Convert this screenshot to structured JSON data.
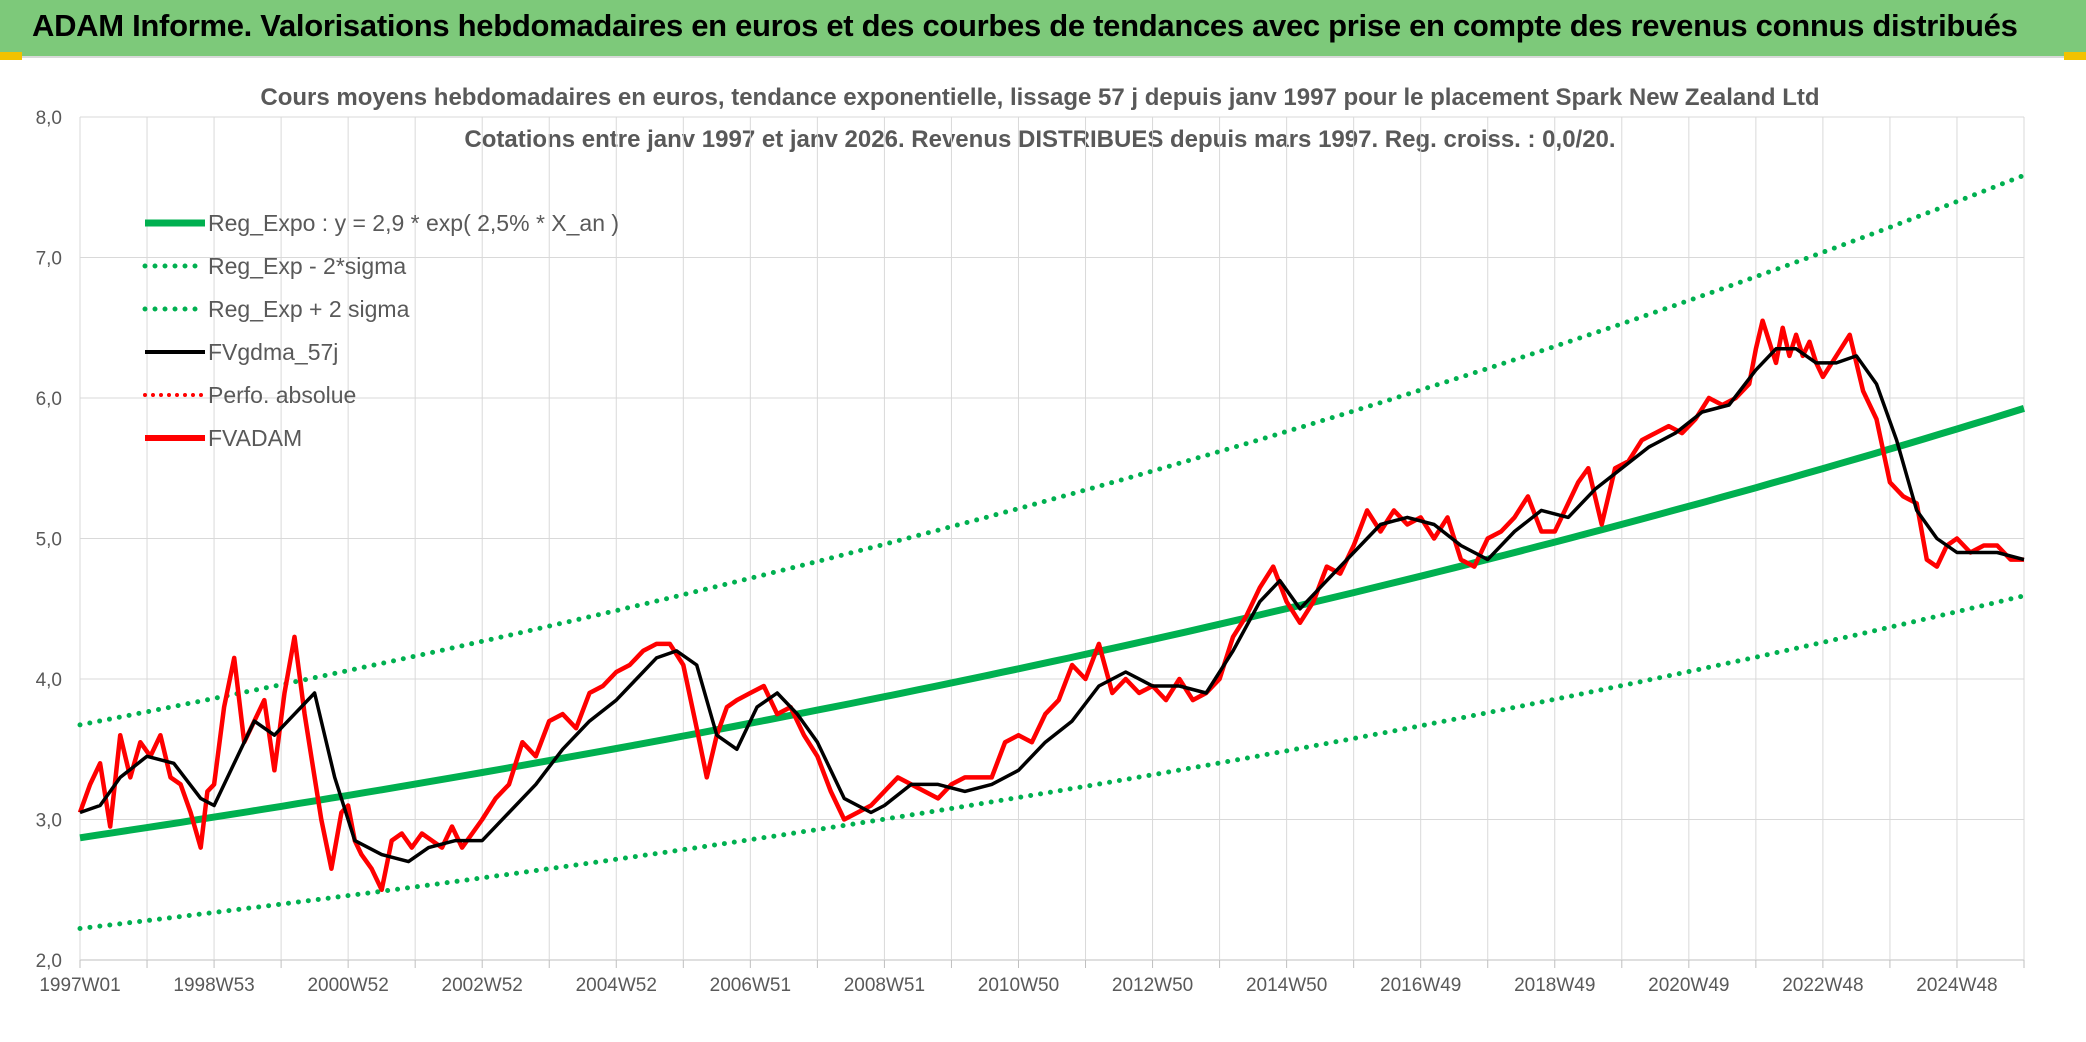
{
  "header": {
    "title": "ADAM Informe. Valorisations hebdomadaires en euros et des courbes de tendances avec prise en compte des revenus connus distribués"
  },
  "colors": {
    "header_bg": "#7dc97a",
    "reg_green": "#00b050",
    "fvgdma": "#000000",
    "fvadam": "#ff0000",
    "grid": "#d9d9d9"
  },
  "chart_data": {
    "type": "line",
    "title": "Cours moyens hebdomadaires en euros, tendance exponentielle, lissage 57 j depuis janv 1997 pour le placement Spark New Zealand Ltd",
    "subtitle": "Cotations entre janv 1997 et janv 2026. Revenus DISTRIBUES depuis mars 1997. Reg. croiss. : 0,0/20.",
    "xlabel": "",
    "ylabel": "",
    "ylim": [
      2.0,
      8.0
    ],
    "xlim": [
      1997.0,
      2026.0
    ],
    "y_ticks": [
      "2,0",
      "3,0",
      "4,0",
      "5,0",
      "6,0",
      "7,0",
      "8,0"
    ],
    "x_tick_labels": [
      "1997W01",
      "1998W53",
      "2000W52",
      "2002W52",
      "2004W52",
      "2006W51",
      "2008W51",
      "2010W50",
      "2012W50",
      "2014W50",
      "2016W49",
      "2018W49",
      "2020W49",
      "2022W48",
      "2024W48"
    ],
    "x_tick_years": [
      1997.0,
      1999.0,
      2001.0,
      2003.0,
      2005.0,
      2007.0,
      2009.0,
      2011.0,
      2013.0,
      2015.0,
      2017.0,
      2019.0,
      2021.0,
      2023.0,
      2025.0
    ],
    "grid": true,
    "legend_position": "top-left",
    "legend": [
      {
        "name": "Reg_Expo : y = 2,9 * exp( 2,5% *  X_an )",
        "style": "solid-green-thick"
      },
      {
        "name": "Reg_Exp - 2*sigma",
        "style": "dotted-green"
      },
      {
        "name": "Reg_Exp + 2 sigma",
        "style": "dotted-green"
      },
      {
        "name": "FVgdma_57j",
        "style": "solid-black"
      },
      {
        "name": "Perfo. absolue",
        "style": "dotted-red"
      },
      {
        "name": "FVADAM",
        "style": "solid-red"
      }
    ],
    "regression": {
      "a": 2.87,
      "rate": 0.025,
      "lower_factor": 0.775,
      "upper_factor": 1.28
    },
    "series": [
      {
        "name": "FVgdma_57j",
        "x": [
          1997.0,
          1997.3,
          1997.6,
          1998.0,
          1998.4,
          1998.8,
          1999.0,
          1999.3,
          1999.6,
          1999.9,
          2000.2,
          2000.5,
          2000.8,
          2001.1,
          2001.5,
          2001.9,
          2002.2,
          2002.6,
          2003.0,
          2003.4,
          2003.8,
          2004.2,
          2004.6,
          2005.0,
          2005.3,
          2005.6,
          2005.9,
          2006.2,
          2006.5,
          2006.8,
          2007.1,
          2007.4,
          2007.7,
          2008.0,
          2008.4,
          2008.8,
          2009.0,
          2009.4,
          2009.8,
          2010.2,
          2010.6,
          2011.0,
          2011.4,
          2011.8,
          2012.2,
          2012.6,
          2013.0,
          2013.4,
          2013.8,
          2014.2,
          2014.6,
          2014.9,
          2015.2,
          2015.6,
          2016.0,
          2016.4,
          2016.8,
          2017.2,
          2017.6,
          2018.0,
          2018.4,
          2018.8,
          2019.2,
          2019.6,
          2020.0,
          2020.4,
          2020.8,
          2021.2,
          2021.6,
          2022.0,
          2022.3,
          2022.6,
          2022.9,
          2023.2,
          2023.5,
          2023.8,
          2024.1,
          2024.4,
          2024.7,
          2025.0,
          2025.3,
          2025.6,
          2026.0
        ],
        "values": [
          3.05,
          3.1,
          3.3,
          3.45,
          3.4,
          3.15,
          3.1,
          3.4,
          3.7,
          3.6,
          3.75,
          3.9,
          3.3,
          2.85,
          2.75,
          2.7,
          2.8,
          2.85,
          2.85,
          3.05,
          3.25,
          3.5,
          3.7,
          3.85,
          4.0,
          4.15,
          4.2,
          4.1,
          3.6,
          3.5,
          3.8,
          3.9,
          3.75,
          3.55,
          3.15,
          3.05,
          3.1,
          3.25,
          3.25,
          3.2,
          3.25,
          3.35,
          3.55,
          3.7,
          3.95,
          4.05,
          3.95,
          3.95,
          3.9,
          4.2,
          4.55,
          4.7,
          4.5,
          4.7,
          4.9,
          5.1,
          5.15,
          5.1,
          4.95,
          4.85,
          5.05,
          5.2,
          5.15,
          5.35,
          5.5,
          5.65,
          5.75,
          5.9,
          5.95,
          6.2,
          6.35,
          6.35,
          6.25,
          6.25,
          6.3,
          6.1,
          5.7,
          5.2,
          5.0,
          4.9,
          4.9,
          4.9,
          4.85
        ]
      },
      {
        "name": "FVADAM",
        "x": [
          1997.0,
          1997.15,
          1997.3,
          1997.45,
          1997.6,
          1997.75,
          1997.9,
          1998.05,
          1998.2,
          1998.35,
          1998.5,
          1998.65,
          1998.8,
          1998.9,
          1999.0,
          1999.15,
          1999.3,
          1999.45,
          1999.6,
          1999.75,
          1999.9,
          2000.05,
          2000.2,
          2000.35,
          2000.5,
          2000.6,
          2000.75,
          2000.9,
          2001.0,
          2001.1,
          2001.2,
          2001.35,
          2001.5,
          2001.65,
          2001.8,
          2001.95,
          2002.1,
          2002.25,
          2002.4,
          2002.55,
          2002.7,
          2002.85,
          2003.0,
          2003.2,
          2003.4,
          2003.6,
          2003.8,
          2004.0,
          2004.2,
          2004.4,
          2004.6,
          2004.8,
          2005.0,
          2005.2,
          2005.4,
          2005.6,
          2005.8,
          2006.0,
          2006.2,
          2006.35,
          2006.5,
          2006.65,
          2006.8,
          2007.0,
          2007.2,
          2007.4,
          2007.6,
          2007.8,
          2008.0,
          2008.2,
          2008.4,
          2008.6,
          2008.8,
          2009.0,
          2009.2,
          2009.4,
          2009.6,
          2009.8,
          2010.0,
          2010.2,
          2010.4,
          2010.6,
          2010.8,
          2011.0,
          2011.2,
          2011.4,
          2011.6,
          2011.8,
          2012.0,
          2012.2,
          2012.4,
          2012.6,
          2012.8,
          2013.0,
          2013.2,
          2013.4,
          2013.6,
          2013.8,
          2014.0,
          2014.2,
          2014.4,
          2014.6,
          2014.8,
          2015.0,
          2015.2,
          2015.4,
          2015.6,
          2015.8,
          2016.0,
          2016.2,
          2016.4,
          2016.6,
          2016.8,
          2017.0,
          2017.2,
          2017.4,
          2017.6,
          2017.8,
          2018.0,
          2018.2,
          2018.4,
          2018.6,
          2018.8,
          2019.0,
          2019.2,
          2019.35,
          2019.5,
          2019.7,
          2019.9,
          2020.1,
          2020.3,
          2020.5,
          2020.7,
          2020.9,
          2021.1,
          2021.3,
          2021.5,
          2021.7,
          2021.9,
          2022.0,
          2022.1,
          2022.2,
          2022.3,
          2022.4,
          2022.5,
          2022.6,
          2022.7,
          2022.8,
          2022.9,
          2023.0,
          2023.2,
          2023.4,
          2023.6,
          2023.8,
          2024.0,
          2024.2,
          2024.4,
          2024.55,
          2024.7,
          2024.85,
          2025.0,
          2025.2,
          2025.4,
          2025.6,
          2025.8,
          2026.0
        ],
        "values": [
          3.05,
          3.25,
          3.4,
          2.95,
          3.6,
          3.3,
          3.55,
          3.45,
          3.6,
          3.3,
          3.25,
          3.05,
          2.8,
          3.2,
          3.25,
          3.8,
          4.15,
          3.55,
          3.7,
          3.85,
          3.35,
          3.9,
          4.3,
          3.75,
          3.3,
          3.0,
          2.65,
          3.05,
          3.1,
          2.85,
          2.75,
          2.65,
          2.5,
          2.85,
          2.9,
          2.8,
          2.9,
          2.85,
          2.8,
          2.95,
          2.8,
          2.9,
          3.0,
          3.15,
          3.25,
          3.55,
          3.45,
          3.7,
          3.75,
          3.65,
          3.9,
          3.95,
          4.05,
          4.1,
          4.2,
          4.25,
          4.25,
          4.1,
          3.65,
          3.3,
          3.6,
          3.8,
          3.85,
          3.9,
          3.95,
          3.75,
          3.8,
          3.6,
          3.45,
          3.2,
          3.0,
          3.05,
          3.1,
          3.2,
          3.3,
          3.25,
          3.2,
          3.15,
          3.25,
          3.3,
          3.3,
          3.3,
          3.55,
          3.6,
          3.55,
          3.75,
          3.85,
          4.1,
          4.0,
          4.25,
          3.9,
          4.0,
          3.9,
          3.95,
          3.85,
          4.0,
          3.85,
          3.9,
          4.0,
          4.3,
          4.45,
          4.65,
          4.8,
          4.55,
          4.4,
          4.55,
          4.8,
          4.75,
          4.95,
          5.2,
          5.05,
          5.2,
          5.1,
          5.15,
          5.0,
          5.15,
          4.85,
          4.8,
          5.0,
          5.05,
          5.15,
          5.3,
          5.05,
          5.05,
          5.25,
          5.4,
          5.5,
          5.1,
          5.5,
          5.55,
          5.7,
          5.75,
          5.8,
          5.75,
          5.85,
          6.0,
          5.95,
          6.0,
          6.1,
          6.35,
          6.55,
          6.4,
          6.25,
          6.5,
          6.3,
          6.45,
          6.3,
          6.4,
          6.25,
          6.15,
          6.3,
          6.45,
          6.05,
          5.85,
          5.4,
          5.3,
          5.25,
          4.85,
          4.8,
          4.95,
          5.0,
          4.9,
          4.95,
          4.95,
          4.85,
          4.85
        ]
      }
    ]
  }
}
